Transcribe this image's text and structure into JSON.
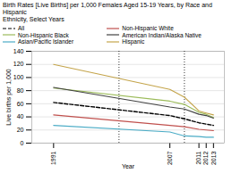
{
  "chart_data": {
    "type": "line",
    "title": "Birth Rates [Live Births] per 1,000 Females Aged 15-19 Years, by Race and Hispanic",
    "subtitle": "Ethnicity, Select Years",
    "x_label": "Year",
    "y_label": "Live births per 1,000",
    "x": [
      1991,
      2007,
      2009,
      2011,
      2012,
      2013
    ],
    "series": [
      {
        "name": "All",
        "color": "#000000",
        "line_style": "dashed",
        "values": [
          62,
          42,
          37,
          31,
          29,
          27
        ]
      },
      {
        "name": "Non-Hispanic White",
        "color": "#c0504d",
        "line_style": "solid",
        "values": [
          43,
          27,
          25,
          21,
          20,
          19
        ]
      },
      {
        "name": "Non-Hispanic Black",
        "color": "#9bbb59",
        "line_style": "solid",
        "values": [
          84,
          64,
          59,
          47,
          44,
          39
        ]
      },
      {
        "name": "American Indian/Alaska Native",
        "color": "#404040",
        "line_style": "solid",
        "values": [
          85,
          55,
          52,
          44,
          42,
          38
        ]
      },
      {
        "name": "Asian/Pacific Islander",
        "color": "#4bacc6",
        "line_style": "solid",
        "values": [
          27,
          17,
          11,
          10,
          9,
          9
        ]
      },
      {
        "name": "Hispanic",
        "color": "#c4a44a",
        "line_style": "solid",
        "values": [
          120,
          82,
          70,
          49,
          46,
          43
        ]
      }
    ],
    "vlines": [
      2000,
      2009
    ],
    "xlim": [
      1988,
      2014.5
    ],
    "xticks": [
      1991,
      2007,
      2011,
      2012,
      2013
    ],
    "ylim": [
      0,
      140
    ],
    "yticks": [
      0,
      20,
      40,
      60,
      80,
      100,
      120,
      140
    ],
    "grid": "y",
    "legend": "upper left"
  }
}
